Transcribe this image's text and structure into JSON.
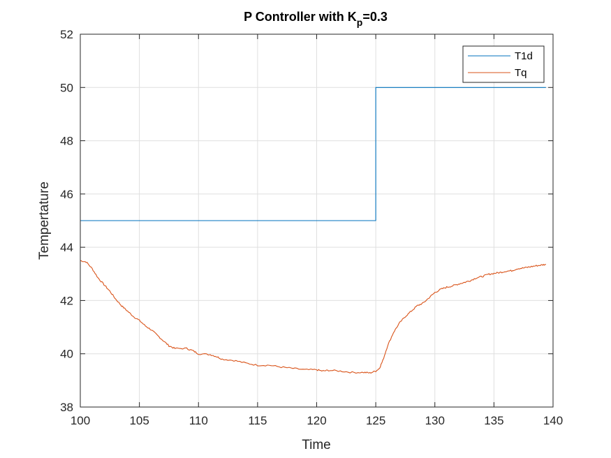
{
  "chart_data": {
    "type": "line",
    "title_main": "P Controller with K",
    "title_sub": "p",
    "title_tail": "=0.3",
    "xlabel": "Time",
    "ylabel": "Tempertature",
    "xlim": [
      100,
      140
    ],
    "ylim": [
      38,
      52
    ],
    "xticks": [
      "100",
      "105",
      "110",
      "115",
      "120",
      "125",
      "130",
      "135",
      "140"
    ],
    "yticks": [
      "38",
      "40",
      "42",
      "44",
      "46",
      "48",
      "50",
      "52"
    ],
    "grid": true,
    "legend_position": "top-right",
    "series": [
      {
        "name": "T1d",
        "color": "#0072BD",
        "step": true,
        "points": [
          [
            100,
            45
          ],
          [
            125,
            45
          ],
          [
            125,
            50
          ],
          [
            139.4,
            50
          ]
        ]
      },
      {
        "name": "Tq",
        "color": "#D95319",
        "step": false,
        "points": [
          [
            100,
            43.5
          ],
          [
            100.5,
            43.45
          ],
          [
            101,
            43.2
          ],
          [
            101.5,
            42.85
          ],
          [
            102,
            42.6
          ],
          [
            102.5,
            42.35
          ],
          [
            103,
            42.05
          ],
          [
            103.5,
            41.8
          ],
          [
            104,
            41.6
          ],
          [
            104.5,
            41.4
          ],
          [
            105,
            41.25
          ],
          [
            105.5,
            41.05
          ],
          [
            106,
            40.9
          ],
          [
            106.5,
            40.7
          ],
          [
            107,
            40.5
          ],
          [
            107.5,
            40.3
          ],
          [
            108,
            40.2
          ],
          [
            109,
            40.2
          ],
          [
            109.5,
            40.12
          ],
          [
            110,
            40.0
          ],
          [
            111,
            39.97
          ],
          [
            111.5,
            39.9
          ],
          [
            112,
            39.8
          ],
          [
            113,
            39.75
          ],
          [
            114,
            39.65
          ],
          [
            115,
            39.57
          ],
          [
            116,
            39.57
          ],
          [
            117,
            39.5
          ],
          [
            118,
            39.45
          ],
          [
            119,
            39.4
          ],
          [
            120,
            39.4
          ],
          [
            120.5,
            39.35
          ],
          [
            121,
            39.38
          ],
          [
            122,
            39.35
          ],
          [
            123,
            39.3
          ],
          [
            124,
            39.3
          ],
          [
            124.5,
            39.28
          ],
          [
            125,
            39.35
          ],
          [
            125.3,
            39.45
          ],
          [
            125.6,
            39.75
          ],
          [
            126,
            40.3
          ],
          [
            126.5,
            40.8
          ],
          [
            127,
            41.15
          ],
          [
            127.5,
            41.4
          ],
          [
            128,
            41.6
          ],
          [
            128.5,
            41.8
          ],
          [
            129,
            41.9
          ],
          [
            129.5,
            42.1
          ],
          [
            130,
            42.3
          ],
          [
            130.5,
            42.42
          ],
          [
            131,
            42.5
          ],
          [
            131.5,
            42.55
          ],
          [
            132,
            42.62
          ],
          [
            132.5,
            42.68
          ],
          [
            133,
            42.75
          ],
          [
            133.5,
            42.85
          ],
          [
            134,
            42.9
          ],
          [
            134.5,
            42.98
          ],
          [
            135,
            43.02
          ],
          [
            135.5,
            43.05
          ],
          [
            136,
            43.1
          ],
          [
            136.5,
            43.12
          ],
          [
            137,
            43.2
          ],
          [
            137.5,
            43.22
          ],
          [
            138,
            43.26
          ],
          [
            138.5,
            43.3
          ],
          [
            139,
            43.33
          ],
          [
            139.4,
            43.36
          ]
        ]
      }
    ]
  }
}
